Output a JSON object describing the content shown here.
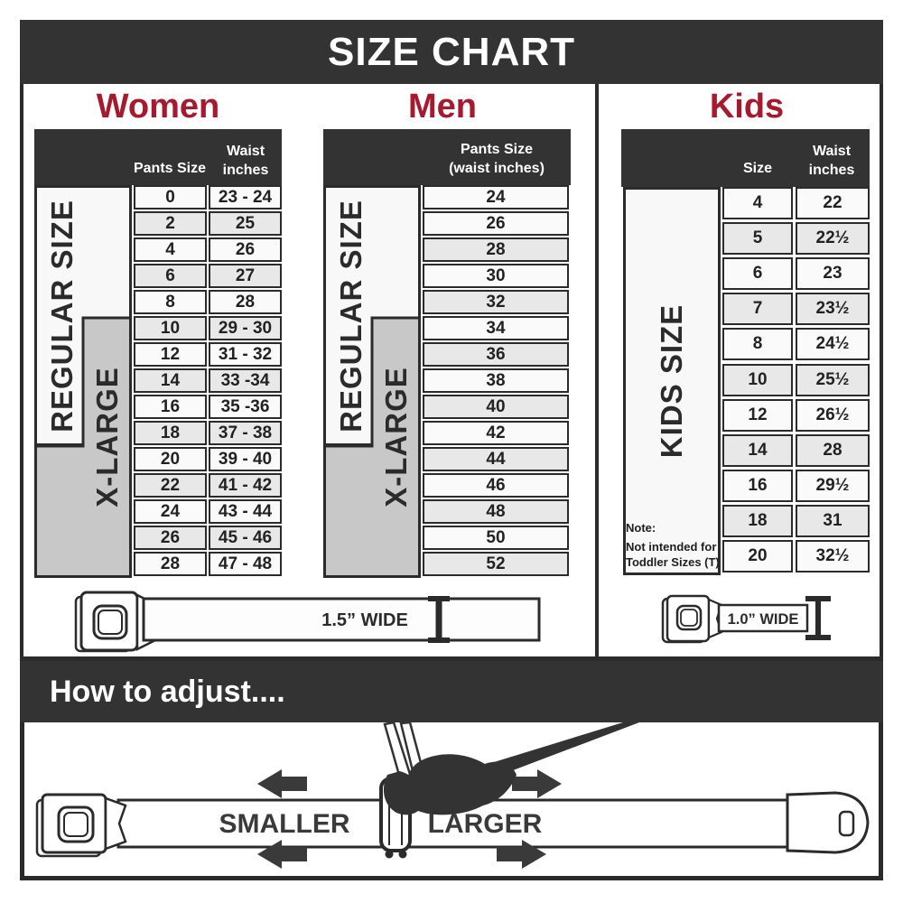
{
  "title": "SIZE CHART",
  "colors": {
    "band_dark": "#333333",
    "accent_red": "#A6192E",
    "row_shaded": "#e8e8e8",
    "xlarge_gray": "#c8c8c8",
    "ink": "#2b2b2b"
  },
  "sections": {
    "women": {
      "heading": "Women",
      "header_col1": "Pants Size",
      "header_col2_line1": "Waist",
      "header_col2_line2": "inches",
      "regular_label": "REGULAR SIZE",
      "xlarge_label": "X-LARGE",
      "rows": [
        {
          "size": "0",
          "waist": "23 - 24",
          "shaded": false
        },
        {
          "size": "2",
          "waist": "25",
          "shaded": true
        },
        {
          "size": "4",
          "waist": "26",
          "shaded": false
        },
        {
          "size": "6",
          "waist": "27",
          "shaded": true
        },
        {
          "size": "8",
          "waist": "28",
          "shaded": false
        },
        {
          "size": "10",
          "waist": "29 - 30",
          "shaded": true
        },
        {
          "size": "12",
          "waist": "31 - 32",
          "shaded": false
        },
        {
          "size": "14",
          "waist": "33 -34",
          "shaded": true
        },
        {
          "size": "16",
          "waist": "35 -36",
          "shaded": false
        },
        {
          "size": "18",
          "waist": "37 - 38",
          "shaded": true
        },
        {
          "size": "20",
          "waist": "39 - 40",
          "shaded": false
        },
        {
          "size": "22",
          "waist": "41 - 42",
          "shaded": true
        },
        {
          "size": "24",
          "waist": "43 - 44",
          "shaded": false
        },
        {
          "size": "26",
          "waist": "45 - 46",
          "shaded": true
        },
        {
          "size": "28",
          "waist": "47 - 48",
          "shaded": false
        }
      ]
    },
    "men": {
      "heading": "Men",
      "header_line1": "Pants Size",
      "header_line2": "(waist inches)",
      "regular_label": "REGULAR SIZE",
      "xlarge_label": "X-LARGE",
      "rows": [
        {
          "size": "24",
          "shaded": false
        },
        {
          "size": "26",
          "shaded": false
        },
        {
          "size": "28",
          "shaded": true
        },
        {
          "size": "30",
          "shaded": false
        },
        {
          "size": "32",
          "shaded": true
        },
        {
          "size": "34",
          "shaded": false
        },
        {
          "size": "36",
          "shaded": true
        },
        {
          "size": "38",
          "shaded": false
        },
        {
          "size": "40",
          "shaded": true
        },
        {
          "size": "42",
          "shaded": false
        },
        {
          "size": "44",
          "shaded": true
        },
        {
          "size": "46",
          "shaded": false
        },
        {
          "size": "48",
          "shaded": true
        },
        {
          "size": "50",
          "shaded": false
        },
        {
          "size": "52",
          "shaded": true
        }
      ]
    },
    "kids": {
      "heading": "Kids",
      "header_col1": "Size",
      "header_col2_line1": "Waist",
      "header_col2_line2": "inches",
      "label": "KIDS SIZE",
      "note": {
        "line1": "Note:",
        "line2": "Not intended for",
        "line3": "Toddler Sizes (T)"
      },
      "rows": [
        {
          "size": "4",
          "waist": "22",
          "shaded": false
        },
        {
          "size": "5",
          "waist": "22½",
          "shaded": true
        },
        {
          "size": "6",
          "waist": "23",
          "shaded": false
        },
        {
          "size": "7",
          "waist": "23½",
          "shaded": true
        },
        {
          "size": "8",
          "waist": "24½",
          "shaded": false
        },
        {
          "size": "10",
          "waist": "25½",
          "shaded": true
        },
        {
          "size": "12",
          "waist": "26½",
          "shaded": false
        },
        {
          "size": "14",
          "waist": "28",
          "shaded": true
        },
        {
          "size": "16",
          "waist": "29½",
          "shaded": false
        },
        {
          "size": "18",
          "waist": "31",
          "shaded": true
        },
        {
          "size": "20",
          "waist": "32½",
          "shaded": false
        }
      ]
    }
  },
  "belts": {
    "adult_label": "1.5” WIDE",
    "kids_label": "1.0” WIDE"
  },
  "adjust": {
    "heading": "How to adjust....",
    "smaller": "SMALLER",
    "larger": "LARGER"
  }
}
